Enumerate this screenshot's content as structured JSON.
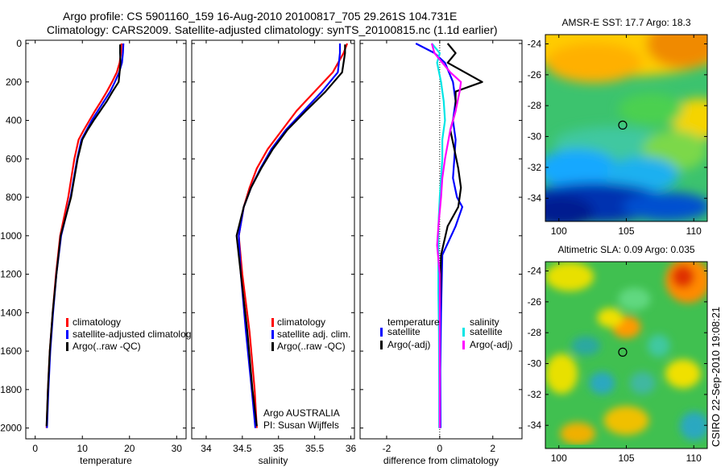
{
  "header": {
    "title_line1": "Argo profile: CS 5901160_159 16-Aug-2010 20100817_705 29.261S 104.731E",
    "title_line2": "Climatology: CARS2009. Satellite-adjusted climatology: synTS_20100815.nc (1.1d earlier)"
  },
  "footer": {
    "stamp": "CSIRO 22-Sep-2010 19:08:21"
  },
  "colors": {
    "climatology": "#ff0000",
    "satellite": "#0000ff",
    "argo": "#000000",
    "sal_satellite": "#00e5e5",
    "sal_argo": "#ff00ff"
  },
  "chart_data": [
    {
      "type": "line",
      "name": "temperature",
      "xlabel": "temperature",
      "xlim": [
        -2,
        32
      ],
      "ylim": [
        0,
        2070
      ],
      "xticks": [
        "0",
        "10",
        "20",
        "30"
      ],
      "yticks": [
        "0",
        "200",
        "400",
        "600",
        "800",
        "1000",
        "1200",
        "1400",
        "1600",
        "1800",
        "2000"
      ],
      "legend": [
        "climatology",
        "satellite-adjusted climatology",
        "Argo(..raw -QC)"
      ],
      "series": [
        {
          "name": "climatology",
          "color": "#ff0000",
          "x": [
            18.3,
            18.2,
            17.9,
            17.3,
            16.3,
            15.2,
            14.0,
            12.7,
            11.5,
            10.3,
            9.2,
            8.3,
            7.0,
            5.3,
            4.4,
            3.7,
            3.1,
            2.7,
            2.4
          ],
          "y": [
            0,
            50,
            100,
            150,
            200,
            250,
            300,
            350,
            400,
            450,
            500,
            600,
            800,
            1000,
            1200,
            1400,
            1600,
            1800,
            2000
          ]
        },
        {
          "name": "satellite",
          "color": "#0000ff",
          "x": [
            18.7,
            18.6,
            18.4,
            17.8,
            16.9,
            15.9,
            14.6,
            13.3,
            12.0,
            10.9,
            9.8,
            8.9,
            7.5,
            5.5,
            4.5,
            3.8,
            3.2,
            2.8,
            2.5
          ],
          "y": [
            0,
            50,
            100,
            150,
            200,
            250,
            300,
            350,
            400,
            450,
            500,
            600,
            800,
            1000,
            1200,
            1400,
            1600,
            1800,
            2000
          ]
        },
        {
          "name": "argo",
          "color": "#000000",
          "x": [
            18.0,
            18.0,
            18.1,
            17.9,
            17.7,
            16.4,
            15.2,
            13.8,
            12.4,
            11.1,
            10.0,
            9.0,
            7.6,
            5.4,
            4.5,
            3.7,
            3.1,
            2.7,
            2.4
          ],
          "y": [
            5,
            50,
            100,
            150,
            200,
            250,
            300,
            350,
            400,
            450,
            500,
            600,
            800,
            1000,
            1200,
            1400,
            1600,
            1800,
            1990
          ]
        }
      ]
    },
    {
      "type": "line",
      "name": "salinity",
      "xlabel": "salinity",
      "xlim": [
        33.8,
        36.05
      ],
      "ylim": [
        0,
        2070
      ],
      "xticks": [
        "34",
        "34.5",
        "35",
        "35.5",
        "36"
      ],
      "legend": [
        "climatology",
        "satellite adj. clim.",
        "Argo(..raw -QC)"
      ],
      "annotation": [
        "Argo AUSTRALIA",
        "PI: Susan Wijffels"
      ],
      "series": [
        {
          "name": "climatology",
          "color": "#ff0000",
          "x": [
            35.95,
            35.9,
            35.75,
            35.5,
            35.25,
            35.05,
            34.85,
            34.7,
            34.6,
            34.52,
            34.45,
            34.5,
            34.6,
            34.67,
            34.7
          ],
          "y": [
            0,
            50,
            150,
            250,
            350,
            450,
            550,
            650,
            750,
            850,
            1000,
            1200,
            1500,
            1800,
            2000
          ]
        },
        {
          "name": "satellite",
          "color": "#0000ff",
          "x": [
            35.85,
            35.85,
            35.82,
            35.6,
            35.35,
            35.1,
            34.9,
            34.75,
            34.62,
            34.52,
            34.45,
            34.48,
            34.55,
            34.63,
            34.68
          ],
          "y": [
            0,
            50,
            150,
            250,
            350,
            450,
            550,
            650,
            750,
            850,
            1000,
            1200,
            1500,
            1800,
            2000
          ]
        },
        {
          "name": "argo",
          "color": "#000000",
          "x": [
            35.92,
            35.92,
            35.88,
            35.65,
            35.38,
            35.12,
            34.92,
            34.76,
            34.62,
            34.52,
            34.42,
            34.48,
            34.57,
            34.64,
            34.7
          ],
          "y": [
            5,
            50,
            150,
            250,
            350,
            450,
            550,
            650,
            750,
            850,
            1000,
            1200,
            1500,
            1800,
            1990
          ]
        }
      ]
    },
    {
      "type": "line",
      "name": "difference",
      "xlabel": "difference from climatology",
      "xlim": [
        -3,
        3.1
      ],
      "ylim": [
        0,
        2070
      ],
      "xticks": [
        "-2",
        "0",
        "2"
      ],
      "legend_titles": [
        "temperature",
        "salinity"
      ],
      "legend": [
        "satellite",
        "Argo(-adj)",
        "satellite",
        "Argo(-adj)"
      ],
      "series": [
        {
          "name": "temperature satellite",
          "color": "#0000ff",
          "x": [
            -0.9,
            -0.2,
            0.2,
            0.5,
            0.6,
            0.5,
            0.6,
            0.55,
            0.5,
            0.65,
            0.85,
            0.6,
            0.1,
            0.05,
            0.02,
            0.03
          ],
          "y": [
            0,
            50,
            100,
            200,
            300,
            400,
            500,
            600,
            700,
            800,
            850,
            950,
            1100,
            1400,
            1700,
            2000
          ]
        },
        {
          "name": "temperature argo",
          "color": "#000000",
          "x": [
            0.3,
            0.6,
            0.3,
            1.6,
            0.6,
            0.6,
            0.4,
            0.55,
            0.7,
            0.8,
            0.7,
            0.3,
            0.05,
            0.0,
            0.0,
            0.0
          ],
          "y": [
            0,
            50,
            100,
            200,
            250,
            350,
            450,
            550,
            650,
            750,
            850,
            950,
            1100,
            1400,
            1700,
            2000
          ]
        },
        {
          "name": "salinity satellite",
          "color": "#00e5e5",
          "x": [
            -0.3,
            0.0,
            -0.1,
            0.05,
            0.15,
            0.2,
            0.1,
            0.1,
            0.05,
            0.0,
            -0.05,
            -0.05,
            -0.05,
            -0.03,
            -0.02,
            -0.02
          ],
          "y": [
            0,
            50,
            100,
            200,
            300,
            400,
            500,
            600,
            700,
            800,
            950,
            1100,
            1300,
            1500,
            1800,
            2000
          ]
        },
        {
          "name": "salinity argo",
          "color": "#ff00ff",
          "x": [
            -0.3,
            -0.2,
            0.4,
            0.8,
            0.75,
            0.6,
            0.4,
            0.2,
            0.1,
            0.05,
            -0.05,
            -0.1,
            0.0,
            0.0,
            0.0,
            0.0
          ],
          "y": [
            0,
            50,
            150,
            200,
            250,
            350,
            450,
            600,
            700,
            800,
            950,
            1050,
            1200,
            1400,
            1700,
            2000
          ]
        }
      ]
    },
    {
      "type": "heatmap",
      "name": "sst-map",
      "title": "AMSR-E SST: 17.7 Argo: 18.3",
      "xlim": [
        99,
        111
      ],
      "ylim": [
        -35.5,
        -23.4
      ],
      "xticks": [
        "100",
        "105",
        "110"
      ],
      "yticks": [
        "-24",
        "-26",
        "-28",
        "-30",
        "-32",
        "-34"
      ],
      "marker": {
        "lon": 104.731,
        "lat": -29.261
      }
    },
    {
      "type": "heatmap",
      "name": "sla-map",
      "title": "Altimetric SLA: 0.09 Argo: 0.035",
      "xlim": [
        99,
        111
      ],
      "ylim": [
        -35.5,
        -23.4
      ],
      "xticks": [
        "100",
        "105",
        "110"
      ],
      "yticks": [
        "-24",
        "-26",
        "-28",
        "-30",
        "-32",
        "-34"
      ],
      "marker": {
        "lon": 104.731,
        "lat": -29.261
      }
    }
  ]
}
